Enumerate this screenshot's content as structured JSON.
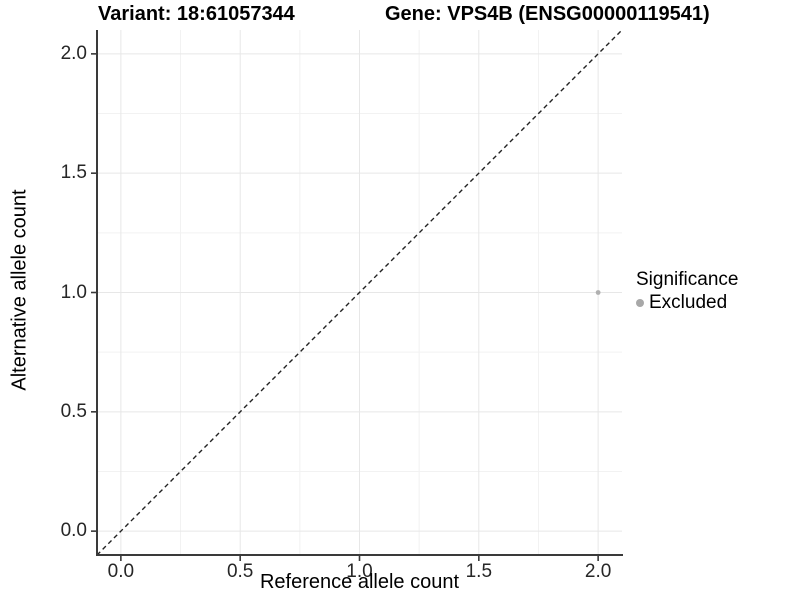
{
  "figure": {
    "title": {
      "variant_label": "Variant: 18:61057344",
      "gene_label": "Gene: VPS4B (ENSG00000119541)"
    }
  },
  "chart_data": {
    "type": "scatter",
    "title": "Variant: 18:61057344   Gene: VPS4B (ENSG00000119541)",
    "xlabel": "Reference allele count",
    "ylabel": "Alternative allele count",
    "xlim": [
      -0.1,
      2.1
    ],
    "ylim": [
      -0.1,
      2.1
    ],
    "x_ticks": {
      "values": [
        0,
        0.5,
        1,
        1.5,
        2
      ],
      "labels": [
        "0.0",
        "0.5",
        "1.0",
        "1.5",
        "2.0"
      ]
    },
    "y_ticks": {
      "values": [
        0,
        0.5,
        1,
        1.5,
        2
      ],
      "labels": [
        "0.0",
        "0.5",
        "1.0",
        "1.5",
        "2.0"
      ]
    },
    "x_minor": [
      0.25,
      0.75,
      1.25,
      1.75
    ],
    "y_minor": [
      0.25,
      0.75,
      1.25,
      1.75
    ],
    "grid": "on",
    "reference_line": {
      "kind": "identity-diagonal",
      "style": "dashed",
      "from": [
        -0.1,
        -0.1
      ],
      "to": [
        2.1,
        2.1
      ]
    },
    "series": [
      {
        "name": "Excluded",
        "color": "#b0b0b0",
        "points": [
          {
            "x": 2,
            "y": 1
          }
        ]
      }
    ],
    "legend": {
      "title": "Significance",
      "position": "right",
      "items": [
        {
          "label": "Excluded",
          "color": "#a8a8a8"
        }
      ]
    },
    "style": {
      "background": "#ffffff",
      "grid_major_color": "#e7e7e7",
      "grid_minor_color": "#f2f2f2",
      "axis_line_color": "#3a3a3a",
      "tick_color": "#3a3a3a",
      "reference_line_color": "#222222"
    }
  }
}
